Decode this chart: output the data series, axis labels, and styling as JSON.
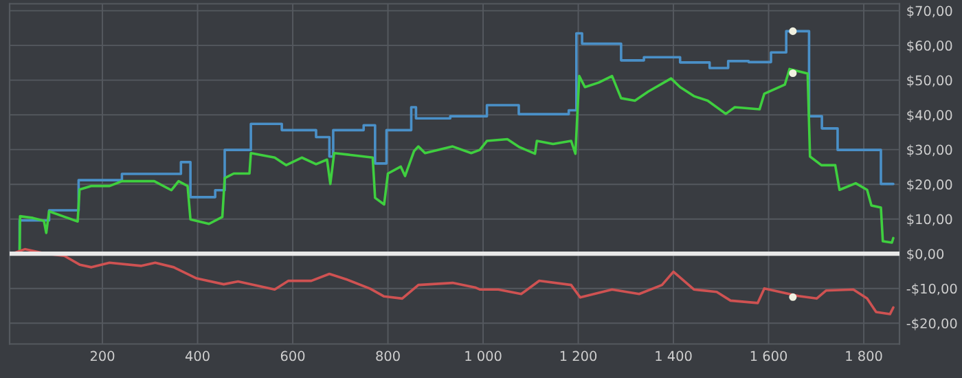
{
  "chart_data": {
    "type": "line",
    "xlim": [
      5,
      1875
    ],
    "ylim": [
      -26,
      72
    ],
    "xticks": [
      200,
      400,
      600,
      800,
      {
        "value": 1000,
        "label": "1 000"
      },
      {
        "value": 1200,
        "label": "1 200"
      },
      {
        "value": 1400,
        "label": "1 400"
      },
      {
        "value": 1600,
        "label": "1 600"
      },
      {
        "value": 1800,
        "label": "1 800"
      }
    ],
    "yticks": [
      {
        "value": -20,
        "label": "-$20,00"
      },
      {
        "value": -10,
        "label": "-$10,00"
      },
      {
        "value": 0,
        "label": "$0,00"
      },
      {
        "value": 10,
        "label": "$10,00"
      },
      {
        "value": 20,
        "label": "$20,00"
      },
      {
        "value": 30,
        "label": "$30,00"
      },
      {
        "value": 40,
        "label": "$40,00"
      },
      {
        "value": 50,
        "label": "$50,00"
      },
      {
        "value": 60,
        "label": "$60,00"
      },
      {
        "value": 70,
        "label": "$70,00"
      }
    ],
    "grid": true,
    "legend": false,
    "marker": "none",
    "line_style": "solid",
    "ref_lines": [
      {
        "axis": "y",
        "value": 0,
        "color": "#e8e8e8"
      }
    ],
    "series": [
      {
        "type": "step",
        "color": "#4a90c8",
        "x": [
          10,
          26,
          88,
          150,
          241,
          365,
          385,
          437,
          457,
          512,
          577,
          649,
          677,
          685,
          749,
          773,
          797,
          849,
          859,
          873,
          931,
          1008,
          1075,
          1180,
          1196,
          1208,
          1290,
          1338,
          1414,
          1476,
          1515,
          1558,
          1605,
          1637,
          1685,
          1712,
          1745,
          1836,
          1862
        ],
        "values": [
          0,
          9.6,
          12.5,
          21.2,
          23,
          26.4,
          16.3,
          18.3,
          29.9,
          37.4,
          35.6,
          33.6,
          28,
          35.6,
          37,
          26,
          35.6,
          42.2,
          39,
          39,
          39.6,
          42.8,
          40.2,
          41.3,
          63.5,
          60.5,
          55.7,
          56.6,
          55.1,
          53.5,
          55.5,
          55.2,
          58,
          64.1,
          39.6,
          36.1,
          29.9,
          20.1,
          20.1
        ]
      },
      {
        "color": "#3fcf3f",
        "x": [
          10,
          26,
          27,
          54,
          77,
          82,
          88,
          121,
          148,
          152,
          176,
          215,
          241,
          273,
          309,
          345,
          360,
          379,
          385,
          424,
          452,
          457,
          476,
          509,
          512,
          562,
          586,
          619,
          649,
          672,
          679,
          687,
          725,
          768,
          773,
          792,
          800,
          827,
          836,
          855,
          864,
          878,
          936,
          975,
          993,
          1008,
          1051,
          1075,
          1109,
          1113,
          1147,
          1185,
          1194,
          1202,
          1214,
          1243,
          1271,
          1290,
          1319,
          1347,
          1395,
          1414,
          1443,
          1472,
          1510,
          1529,
          1581,
          1591,
          1634,
          1644,
          1682,
          1687,
          1711,
          1740,
          1749,
          1783,
          1807,
          1816,
          1836,
          1840,
          1859,
          1862
        ],
        "values": [
          0,
          0,
          10.8,
          10.3,
          9.5,
          6.0,
          12.2,
          10.6,
          9.3,
          18.5,
          19.5,
          19.5,
          20.9,
          20.9,
          20.9,
          18.3,
          20.9,
          19.5,
          9.9,
          8.6,
          10.6,
          21.8,
          23.1,
          23.1,
          29.0,
          27.7,
          25.5,
          27.7,
          25.8,
          27.1,
          20.1,
          29.0,
          28.4,
          27.7,
          16.1,
          14.2,
          23.1,
          25.1,
          22.4,
          29.6,
          30.9,
          29.0,
          30.9,
          29.0,
          29.9,
          32.5,
          33.0,
          30.8,
          28.8,
          32.5,
          31.6,
          32.5,
          28.8,
          51.2,
          48.0,
          49.3,
          51.2,
          44.8,
          44.1,
          46.7,
          50.5,
          48.0,
          45.4,
          44.1,
          40.3,
          42.2,
          41.6,
          46.1,
          48.7,
          53.2,
          51.9,
          28.0,
          25.5,
          25.5,
          18.4,
          20.3,
          18.4,
          13.9,
          13.3,
          3.6,
          3.2,
          4.5
        ]
      },
      {
        "color": "#cf5252",
        "x": [
          10,
          37,
          82,
          120,
          153,
          177,
          215,
          282,
          311,
          350,
          398,
          455,
          485,
          562,
          591,
          639,
          677,
          715,
          763,
          792,
          830,
          864,
          936,
          983,
          993,
          1032,
          1080,
          1118,
          1185,
          1204,
          1271,
          1328,
          1376,
          1400,
          1443,
          1491,
          1520,
          1577,
          1591,
          1663,
          1701,
          1721,
          1778,
          1807,
          1826,
          1855,
          1862
        ],
        "values": [
          0,
          1.3,
          0,
          -0.6,
          -3.2,
          -3.9,
          -2.6,
          -3.5,
          -2.6,
          -3.9,
          -7.1,
          -8.8,
          -8.0,
          -10.3,
          -7.8,
          -7.8,
          -5.8,
          -7.5,
          -10.1,
          -12.3,
          -12.9,
          -9.0,
          -8.4,
          -9.7,
          -10.3,
          -10.3,
          -11.6,
          -7.8,
          -9.0,
          -12.6,
          -10.3,
          -11.6,
          -9.0,
          -5.2,
          -10.3,
          -11.0,
          -13.5,
          -14.2,
          -10.0,
          -12.2,
          -12.9,
          -10.6,
          -10.3,
          -12.9,
          -16.8,
          -17.4,
          -15.5
        ]
      },
      {
        "type": "scatter",
        "color": "#f0f0e0",
        "marker": "circle",
        "x": [
          1651,
          1651,
          1651
        ],
        "values": [
          64.1,
          52,
          -12.5
        ]
      }
    ]
  }
}
